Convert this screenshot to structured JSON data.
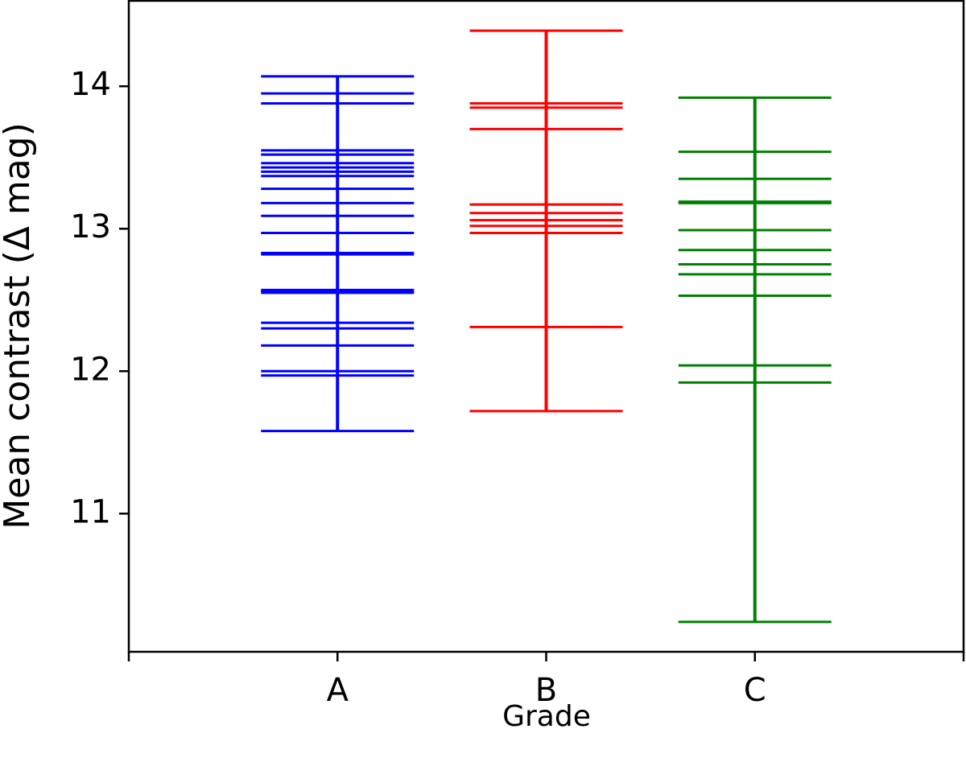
{
  "chart_data": {
    "type": "strip",
    "x_label": "Grade",
    "y_label": "Mean contrast (Δ mag)",
    "categories": [
      "A",
      "B",
      "C"
    ],
    "colors": [
      "#0000ff",
      "#ff0000",
      "#008000"
    ],
    "values": [
      [
        14.07,
        13.95,
        13.88,
        13.55,
        13.52,
        13.46,
        13.43,
        13.4,
        13.37,
        13.28,
        13.18,
        13.09,
        12.97,
        12.83,
        12.82,
        12.57,
        12.56,
        12.55,
        12.34,
        12.3,
        12.18,
        12.0,
        11.97,
        11.58
      ],
      [
        14.39,
        13.88,
        13.85,
        13.7,
        13.17,
        13.11,
        13.06,
        13.02,
        12.97,
        12.31,
        11.72
      ],
      [
        13.92,
        13.54,
        13.35,
        13.19,
        13.18,
        12.99,
        12.85,
        12.75,
        12.68,
        12.53,
        12.04,
        11.92,
        10.24
      ]
    ],
    "ylim": [
      10.03,
      14.6
    ],
    "yticks": [
      11,
      12,
      13,
      14
    ]
  }
}
